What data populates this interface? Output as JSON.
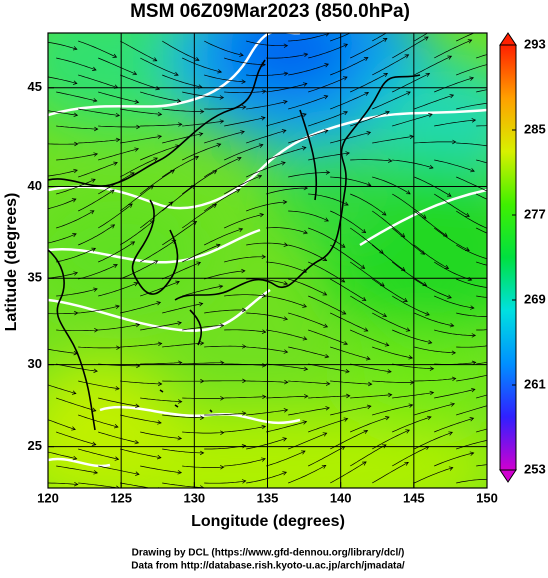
{
  "chart_data": {
    "type": "map",
    "title": "MSM 06Z09Mar2023 (850.0hPa)",
    "x_label": "Longitude (degrees)",
    "y_label": "Latitude  (degrees)",
    "xlim": [
      120,
      150
    ],
    "xticks": [
      120,
      125,
      130,
      135,
      140,
      145,
      150
    ],
    "ylim": [
      22.4,
      47.6
    ],
    "yticks": [
      25,
      30,
      35,
      40,
      45
    ],
    "projection": "mercator",
    "grid": true,
    "colorbar": {
      "lim": [
        253,
        293
      ],
      "ticks": [
        253,
        261,
        269,
        277,
        285,
        293
      ],
      "colors": [
        "#d000d0",
        "#3020ff",
        "#0090ff",
        "#00e0e0",
        "#00e040",
        "#40f000",
        "#d8f000",
        "#ffa000",
        "#ff2000"
      ]
    }
  },
  "footer": {
    "lines": [
      "Drawing by DCL (https://www.gfd-dennou.org/library/dcl/)",
      "Data from http://database.rish.kyoto-u.ac.jp/arch/jmadata/"
    ]
  }
}
